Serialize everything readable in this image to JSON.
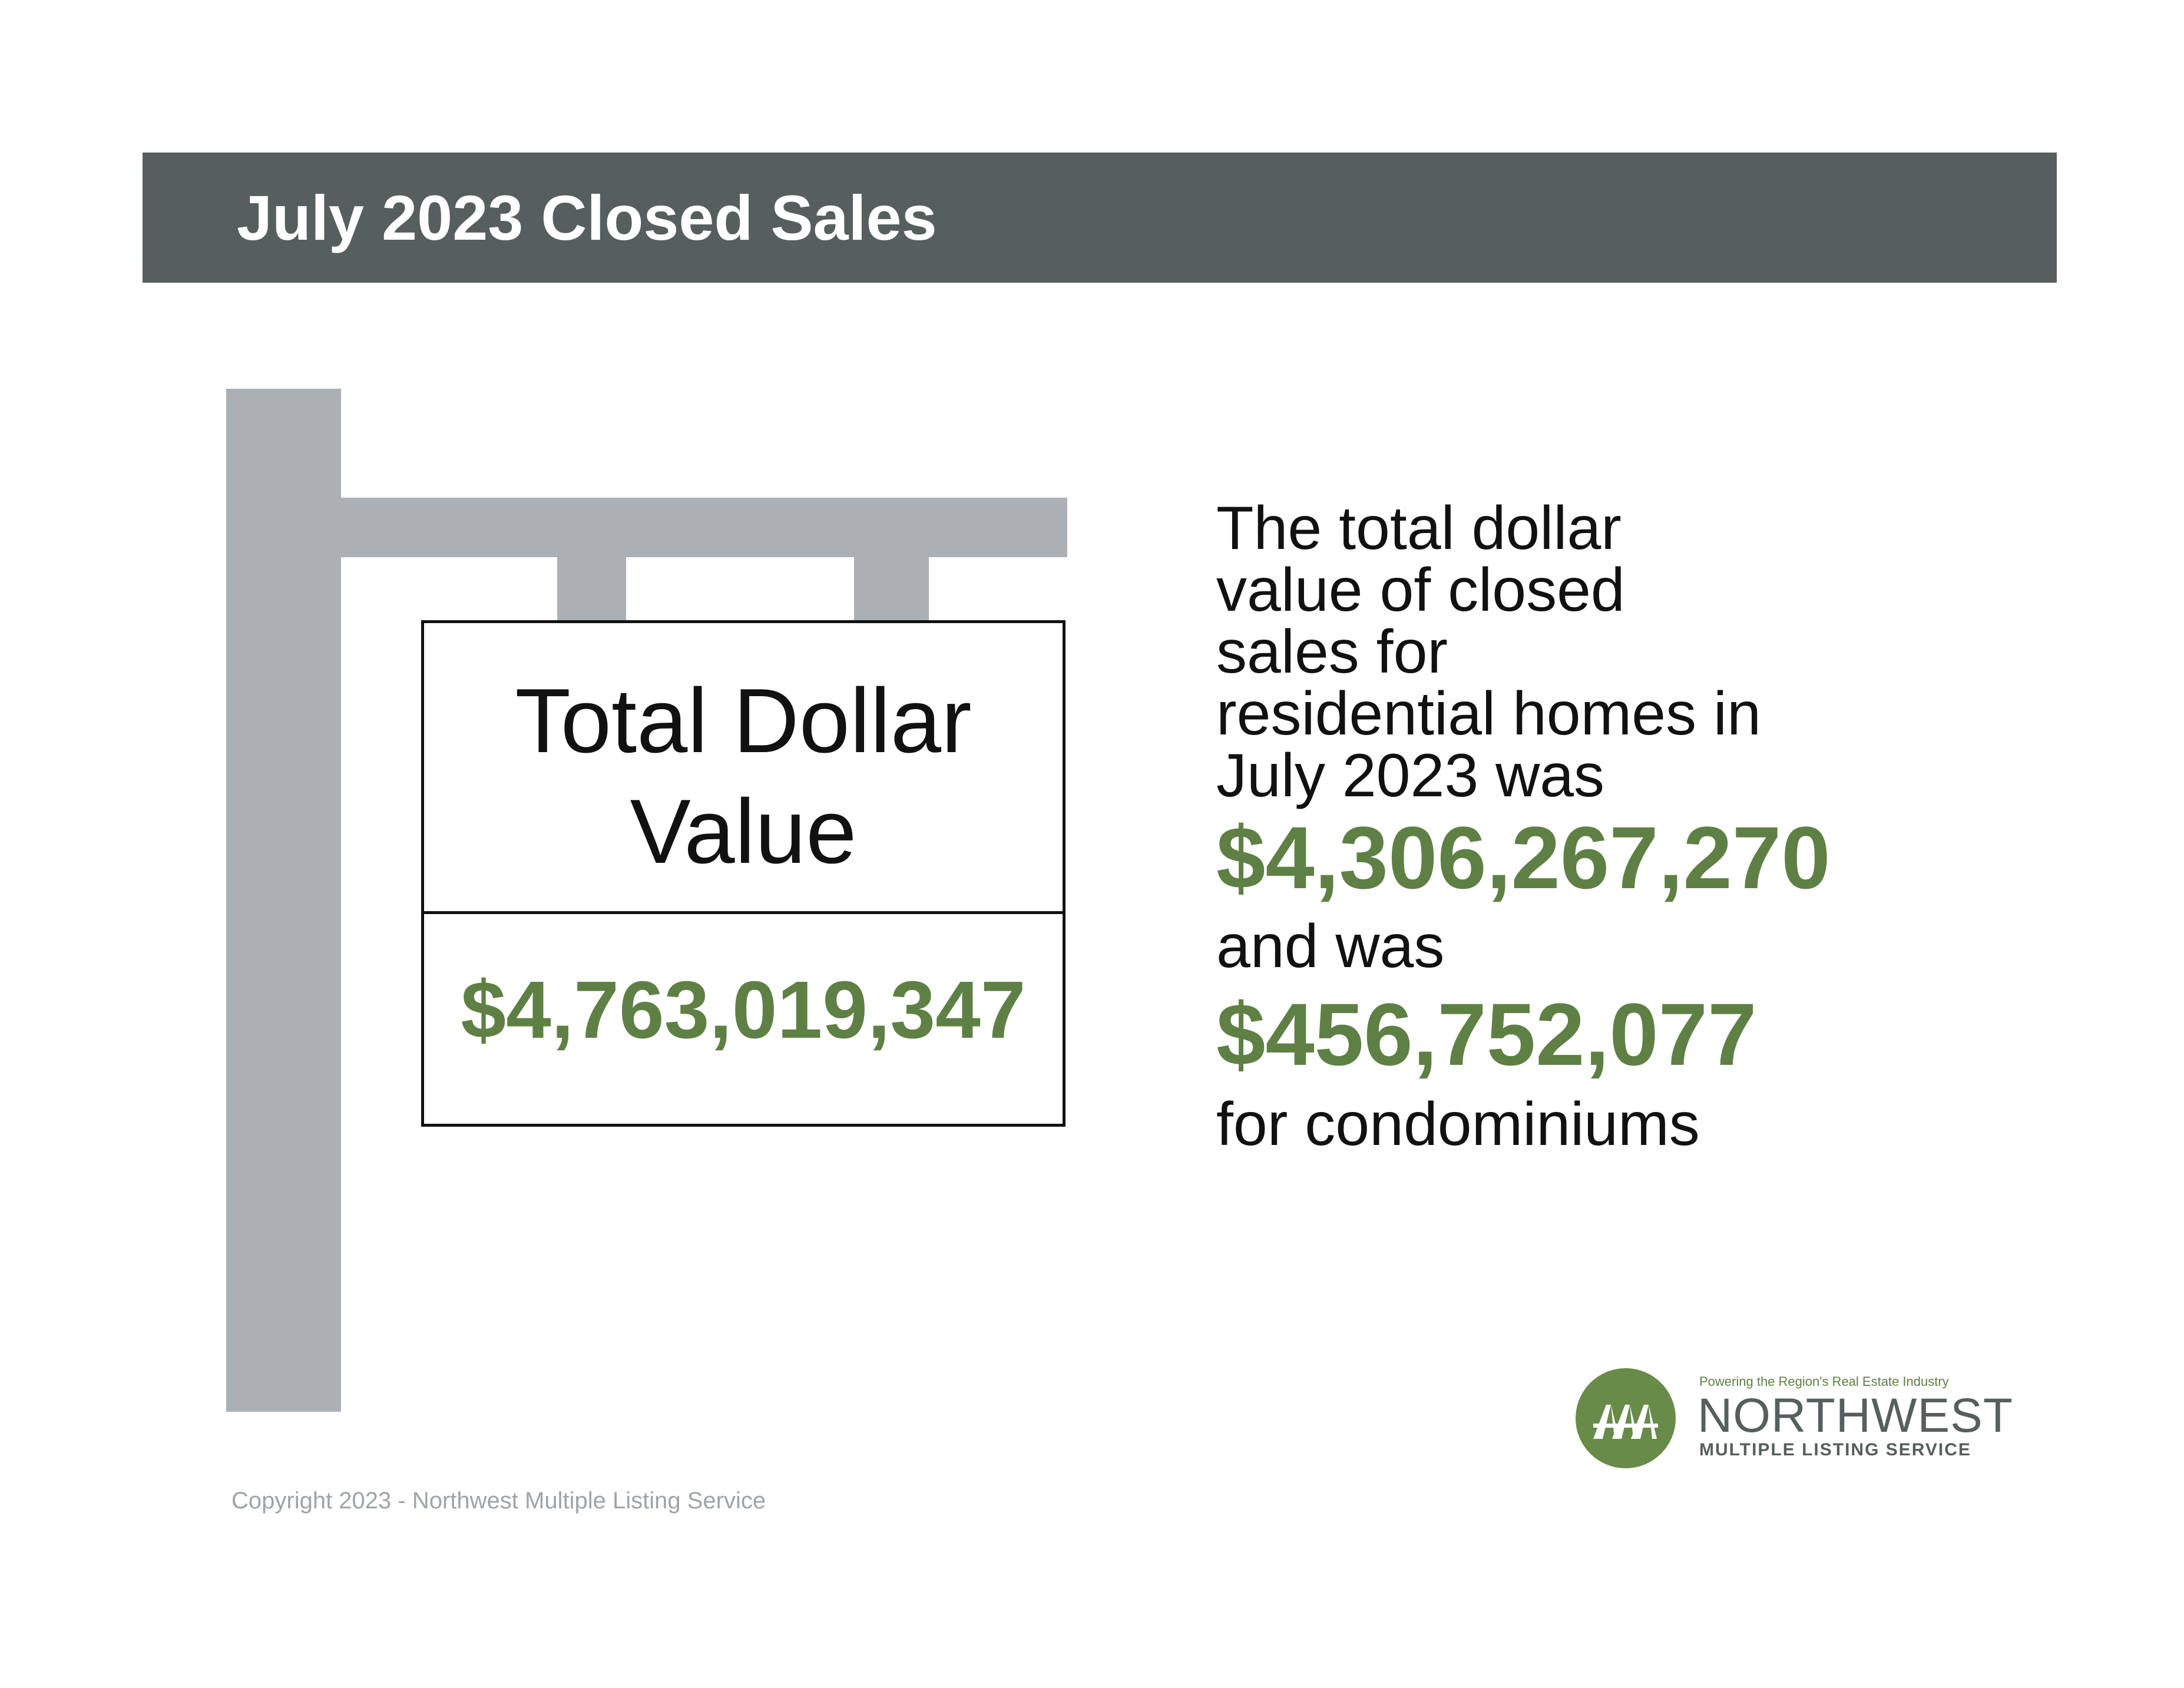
{
  "header": {
    "title": "July 2023 Closed Sales"
  },
  "sign": {
    "label_line1": "Total Dollar",
    "label_line2": "Value",
    "value": "$4,763,019,347"
  },
  "description": {
    "intro_lines": [
      "The total dollar",
      "value of closed",
      "sales for",
      "residential homes in",
      "July 2023 was"
    ],
    "residential_amount": "$4,306,267,270",
    "connector": "and was",
    "condo_amount": "$456,752,077",
    "condo_suffix": "for condominiums"
  },
  "logo": {
    "tagline": "Powering the Region's Real Estate Industry",
    "name": "NORTHWEST",
    "subtitle": "MULTIPLE LISTING SERVICE",
    "icon": "tree-roofs-icon"
  },
  "footer": {
    "copyright": "Copyright 2023 - Northwest Multiple Listing Service"
  },
  "colors": {
    "header_bg": "#565f5e",
    "accent_green": "#5f8044",
    "post_gray": "#abb0b5"
  }
}
